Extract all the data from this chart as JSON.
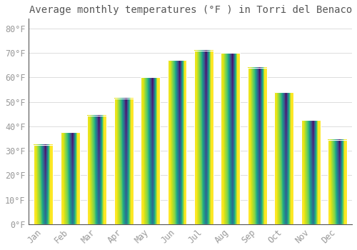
{
  "title": "Average monthly temperatures (°F ) in Torri del Benaco",
  "months": [
    "Jan",
    "Feb",
    "Mar",
    "Apr",
    "May",
    "Jun",
    "Jul",
    "Aug",
    "Sep",
    "Oct",
    "Nov",
    "Dec"
  ],
  "values": [
    32.5,
    37.5,
    44.5,
    51.5,
    60.0,
    67.0,
    71.0,
    70.0,
    64.0,
    54.0,
    42.5,
    34.5
  ],
  "bar_color_top": "#F5A800",
  "bar_color_bottom": "#FFD060",
  "background_color": "#FFFFFF",
  "grid_color": "#DDDDDD",
  "yticks": [
    0,
    10,
    20,
    30,
    40,
    50,
    60,
    70,
    80
  ],
  "ylim": [
    0,
    84
  ],
  "title_fontsize": 10,
  "tick_fontsize": 8.5,
  "tick_color": "#999999",
  "font_family": "monospace"
}
